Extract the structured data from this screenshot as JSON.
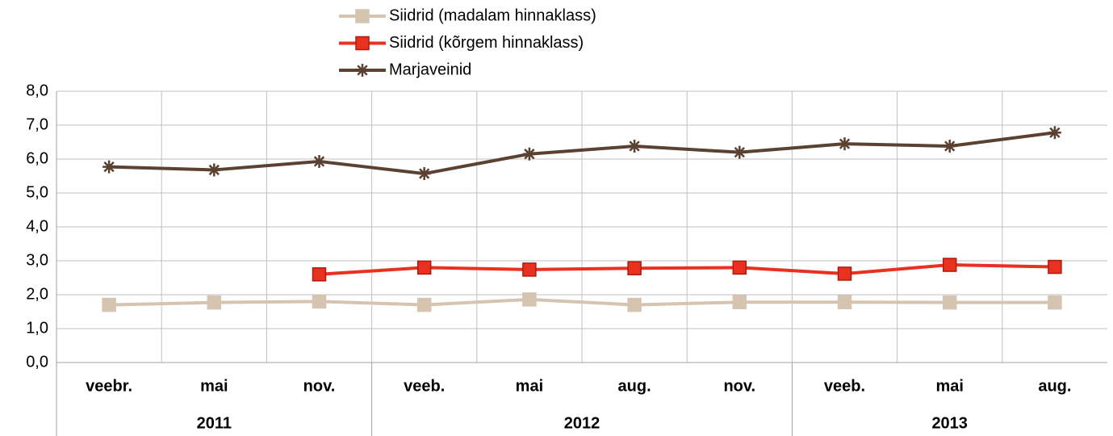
{
  "chart_data": {
    "type": "line",
    "categories": [
      "veebr.",
      "mai",
      "nov.",
      "veeb.",
      "mai",
      "aug.",
      "nov.",
      "veeb.",
      "mai",
      "aug."
    ],
    "category_groups": [
      {
        "label": "2011",
        "span": 3
      },
      {
        "label": "2012",
        "span": 4
      },
      {
        "label": "2013",
        "span": 3
      }
    ],
    "series": [
      {
        "name": "Siidrid (madalam hinnaklass)",
        "color": "#d5c4b0",
        "marker": "square",
        "values": [
          1.7,
          1.77,
          1.8,
          1.7,
          1.86,
          1.7,
          1.78,
          1.78,
          1.77,
          1.77
        ]
      },
      {
        "name": "Siidrid (kõrgem hinnaklass)",
        "color": "#e8311e",
        "marker": "square",
        "values": [
          null,
          null,
          2.6,
          2.8,
          2.74,
          2.78,
          2.8,
          2.62,
          2.88,
          2.82
        ]
      },
      {
        "name": "Marjaveinid",
        "color": "#5a4132",
        "marker": "star",
        "values": [
          5.77,
          5.68,
          5.93,
          5.57,
          6.15,
          6.38,
          6.2,
          6.45,
          6.38,
          6.78
        ]
      }
    ],
    "ylim": [
      0,
      8
    ],
    "yticks": [
      {
        "value": 0,
        "label": "0,0"
      },
      {
        "value": 1,
        "label": "1,0"
      },
      {
        "value": 2,
        "label": "2,0"
      },
      {
        "value": 3,
        "label": "3,0"
      },
      {
        "value": 4,
        "label": "4,0"
      },
      {
        "value": 5,
        "label": "5,0"
      },
      {
        "value": 6,
        "label": "6,0"
      },
      {
        "value": 7,
        "label": "7,0"
      },
      {
        "value": 8,
        "label": "8,0"
      }
    ],
    "grid": true,
    "legend": "top"
  }
}
